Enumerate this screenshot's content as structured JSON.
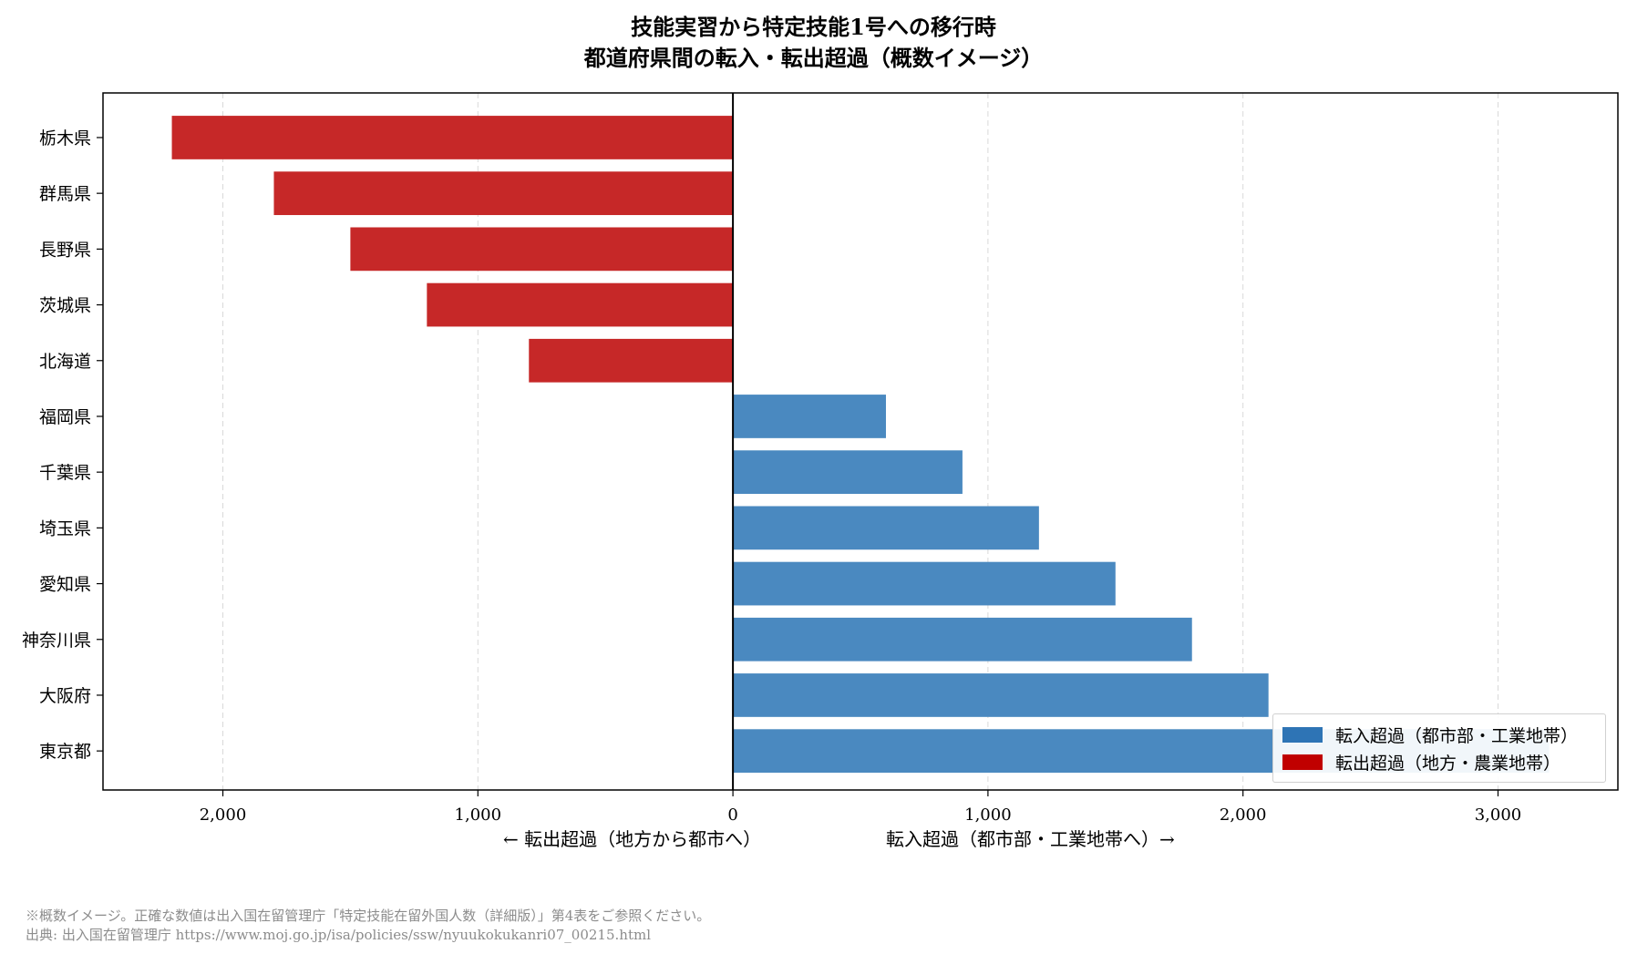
{
  "chart_data": {
    "type": "bar",
    "orientation": "horizontal",
    "title_lines": [
      "技能実習から特定技能1号への移行時",
      "都道府県間の転入・転出超過（概数イメージ）"
    ],
    "categories": [
      "栃木県",
      "群馬県",
      "長野県",
      "茨城県",
      "北海道",
      "福岡県",
      "千葉県",
      "埼玉県",
      "愛知県",
      "神奈川県",
      "大阪府",
      "東京都"
    ],
    "values": [
      -2200,
      -1800,
      -1500,
      -1200,
      -800,
      600,
      900,
      1200,
      1500,
      1800,
      2100,
      3200
    ],
    "xlim": [
      -2470,
      3470
    ],
    "xticks": [
      -2000,
      -1000,
      0,
      1000,
      2000,
      3000
    ],
    "xtick_labels": [
      "2,000",
      "1,000",
      "0",
      "1,000",
      "2,000",
      "3,000"
    ],
    "xlabel_left": "← 転出超過（地方から都市へ）",
    "xlabel_right": "転入超過（都市部・工業地帯へ）→",
    "grid": "x-dashed",
    "legend_position": "lower-right",
    "series": [
      {
        "name": "転入超過（都市部・工業地帯）",
        "color": "#4a89c0",
        "legend_color": "#2e74b5"
      },
      {
        "name": "転出超過（地方・農業地帯）",
        "color": "#c62828",
        "legend_color": "#c00000"
      }
    ]
  },
  "footer": {
    "note": "※概数イメージ。正確な数値は出入国在留管理庁「特定技能在留外国人数（詳細版）」第4表をご参照ください。",
    "source": "出典: 出入国在留管理庁 https://www.moj.go.jp/isa/policies/ssw/nyuukokukanri07_00215.html"
  }
}
